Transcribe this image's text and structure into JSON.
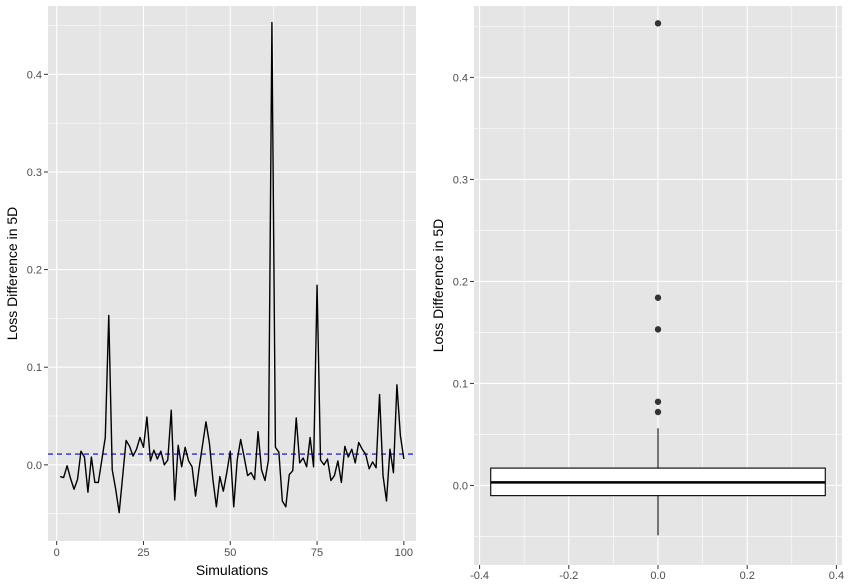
{
  "colors": {
    "panel_bg": "#e5e5e5",
    "grid_major": "#ffffff",
    "line": "#000000",
    "reference_line": "#0000cd",
    "box_fill": "#ffffff",
    "outlier": "#333333"
  },
  "chart_data": [
    {
      "type": "line",
      "xlabel": "Simulations",
      "ylabel": "Loss Difference in 5D",
      "xlim": [
        -2.5,
        103.5
      ],
      "ylim": [
        -0.078,
        0.47
      ],
      "x_ticks": [
        0,
        25,
        50,
        75,
        100
      ],
      "y_ticks": [
        0.0,
        0.1,
        0.2,
        0.3,
        0.4
      ],
      "x_tick_labels": [
        "0",
        "25",
        "50",
        "75",
        "100"
      ],
      "y_tick_labels": [
        "0.0",
        "0.1",
        "0.2",
        "0.3",
        "0.4"
      ],
      "reference_line": {
        "y": 0.011,
        "style": "dashed"
      },
      "series": [
        {
          "x": [
            1,
            2,
            3,
            4,
            5,
            6,
            7,
            8,
            9,
            10,
            11,
            12,
            13,
            14,
            15,
            16,
            17,
            18,
            19,
            20,
            21,
            22,
            23,
            24,
            25,
            26,
            27,
            28,
            29,
            30,
            31,
            32,
            33,
            34,
            35,
            36,
            37,
            38,
            39,
            40,
            41,
            42,
            43,
            44,
            45,
            46,
            47,
            48,
            49,
            50,
            51,
            52,
            53,
            54,
            55,
            56,
            57,
            58,
            59,
            60,
            61,
            62,
            63,
            64,
            65,
            66,
            67,
            68,
            69,
            70,
            71,
            72,
            73,
            74,
            75,
            76,
            77,
            78,
            79,
            80,
            81,
            82,
            83,
            84,
            85,
            86,
            87,
            88,
            89,
            90,
            91,
            92,
            93,
            94,
            95,
            96,
            97,
            98,
            99,
            100
          ],
          "values": [
            -0.012,
            -0.013,
            -0.001,
            -0.014,
            -0.025,
            -0.015,
            0.014,
            0.008,
            -0.028,
            0.008,
            -0.018,
            -0.018,
            0.005,
            0.028,
            0.153,
            -0.005,
            -0.025,
            -0.049,
            -0.012,
            0.025,
            0.019,
            0.009,
            0.016,
            0.028,
            0.018,
            0.049,
            0.004,
            0.015,
            0.006,
            0.014,
            0.0,
            0.005,
            0.056,
            -0.036,
            0.02,
            -0.002,
            0.018,
            0.004,
            -0.002,
            -0.032,
            -0.004,
            0.02,
            0.044,
            0.022,
            -0.015,
            -0.043,
            -0.012,
            -0.027,
            -0.008,
            0.014,
            -0.043,
            0.005,
            0.026,
            0.008,
            -0.011,
            -0.008,
            -0.015,
            0.034,
            -0.005,
            -0.016,
            0.005,
            0.453,
            0.018,
            0.013,
            -0.037,
            -0.043,
            -0.01,
            -0.006,
            0.048,
            0.002,
            0.007,
            -0.002,
            0.028,
            -0.002,
            0.184,
            0.005,
            0.0,
            0.006,
            -0.016,
            -0.011,
            0.004,
            -0.018,
            0.019,
            0.008,
            0.016,
            0.002,
            0.023,
            0.016,
            0.011,
            -0.004,
            0.003,
            -0.003,
            0.072,
            -0.011,
            -0.037,
            0.016,
            -0.008,
            0.082,
            0.03,
            0.006
          ]
        }
      ]
    },
    {
      "type": "box",
      "xlabel": "",
      "ylabel": "Loss Difference in 5D",
      "xlim": [
        -0.4125,
        0.4125
      ],
      "ylim": [
        -0.078,
        0.47
      ],
      "x_ticks": [
        -0.4,
        -0.2,
        0.0,
        0.2,
        0.4
      ],
      "y_ticks": [
        0.0,
        0.1,
        0.2,
        0.3,
        0.4
      ],
      "x_tick_labels": [
        "-0.4",
        "-0.2",
        "0.0",
        "0.2",
        "0.4"
      ],
      "y_tick_labels": [
        "0.0",
        "0.1",
        "0.2",
        "0.3",
        "0.4"
      ],
      "box": {
        "x_center": 0.0,
        "x_left": -0.375,
        "x_right": 0.375,
        "q1": -0.01,
        "median": 0.003,
        "q3": 0.017,
        "whisker_low": -0.049,
        "whisker_high": 0.056,
        "outliers": [
          0.453,
          0.184,
          0.153,
          0.082,
          0.072
        ]
      }
    }
  ]
}
